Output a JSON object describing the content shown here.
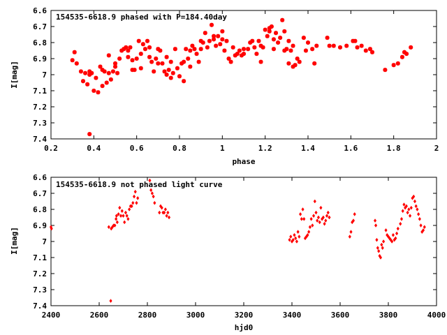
{
  "chart_data": [
    {
      "type": "scatter",
      "title": "154535-6618.9 phased with P=184.40day",
      "xlabel": "phase",
      "ylabel": "I[mag]",
      "xlim": [
        0.2,
        2
      ],
      "ylim": [
        6.6,
        7.4
      ],
      "y_inverted": true,
      "grid": false,
      "x_ticks": [
        "0.2",
        "0.4",
        "0.6",
        "0.8",
        "1",
        "1.2",
        "1.4",
        "1.6",
        "1.8",
        "2"
      ],
      "y_ticks": [
        "6.6",
        "6.7",
        "6.8",
        "6.9",
        "7",
        "7.1",
        "7.2",
        "7.3",
        "7.4"
      ],
      "series": [
        {
          "color": "#ff0000",
          "marker": "star",
          "x": [
            0.3,
            0.31,
            0.32,
            0.34,
            0.35,
            0.36,
            0.37,
            0.38,
            0.38,
            0.39,
            0.4,
            0.41,
            0.42,
            0.43,
            0.44,
            0.45,
            0.46,
            0.47,
            0.48,
            0.49,
            0.5,
            0.51,
            0.52,
            0.53,
            0.54,
            0.55,
            0.56,
            0.57,
            0.58,
            0.59,
            0.6,
            0.61,
            0.62,
            0.63,
            0.64,
            0.65,
            0.66,
            0.67,
            0.68,
            0.69,
            0.7,
            0.71,
            0.72,
            0.73,
            0.74,
            0.75,
            0.76,
            0.77,
            0.78,
            0.79,
            0.8,
            0.81,
            0.82,
            0.83,
            0.84,
            0.85,
            0.86,
            0.87,
            0.88,
            0.89,
            0.9,
            0.91,
            0.92,
            0.93,
            0.94,
            0.95,
            0.96,
            0.97,
            0.98,
            0.99,
            1.0,
            1.01,
            1.02,
            1.03,
            1.04,
            1.05,
            1.07,
            1.08,
            1.09,
            1.1,
            1.12,
            1.13,
            1.14,
            1.15,
            1.16,
            1.17,
            1.18,
            1.19,
            1.2,
            1.21,
            1.22,
            1.23,
            1.24,
            1.25,
            1.26,
            1.27,
            1.28,
            1.29,
            1.3,
            1.31,
            1.32,
            1.33,
            1.34,
            1.35,
            1.36,
            1.38,
            1.39,
            1.4,
            1.42,
            1.43,
            1.44,
            1.49,
            1.5,
            1.52,
            1.55,
            1.58,
            1.61,
            1.62,
            1.63,
            1.65,
            1.67,
            1.69,
            1.7,
            1.76,
            1.8,
            1.82,
            1.84,
            1.85,
            1.86,
            1.88,
            0.38,
            0.44,
            0.47,
            0.58,
            0.66,
            0.74,
            0.85,
            0.96,
            1.06,
            1.18,
            1.24,
            1.31,
            0.5,
            0.56,
            0.62,
            0.7,
            0.76,
            0.82,
            0.9,
            1.0,
            1.1,
            1.22,
            1.29,
            1.33
          ],
          "y": [
            6.91,
            6.86,
            6.93,
            6.98,
            7.04,
            6.99,
            7.06,
            6.98,
            7.37,
            6.99,
            7.1,
            7.02,
            7.11,
            6.95,
            7.07,
            6.98,
            7.05,
            6.99,
            7.03,
            6.98,
            6.93,
            6.99,
            6.9,
            6.85,
            6.84,
            6.83,
            6.85,
            6.83,
            6.91,
            6.97,
            6.9,
            6.79,
            6.87,
            6.81,
            6.84,
            6.79,
            6.89,
            6.92,
            6.98,
            6.9,
            6.84,
            6.85,
            6.93,
            6.98,
            7.0,
            6.97,
            6.92,
            6.99,
            6.84,
            6.96,
            7.01,
            6.93,
            6.92,
            6.84,
            6.9,
            6.85,
            6.82,
            6.84,
            6.87,
            6.92,
            6.79,
            6.8,
            6.74,
            6.83,
            6.79,
            6.69,
            6.78,
            6.82,
            6.76,
            6.81,
            6.73,
            6.85,
            6.79,
            6.9,
            6.92,
            6.83,
            6.87,
            6.85,
            6.88,
            6.87,
            6.84,
            6.8,
            6.79,
            6.83,
            6.87,
            6.79,
            6.82,
            6.83,
            6.72,
            6.76,
            6.73,
            6.7,
            6.78,
            6.74,
            6.8,
            6.77,
            6.66,
            6.73,
            6.84,
            6.79,
            6.85,
            6.82,
            6.94,
            6.9,
            6.92,
            6.77,
            6.85,
            6.8,
            6.84,
            6.93,
            6.82,
            6.77,
            6.82,
            6.82,
            6.83,
            6.82,
            6.79,
            6.79,
            6.83,
            6.82,
            6.85,
            6.84,
            6.86,
            6.97,
            6.94,
            6.93,
            6.89,
            6.86,
            6.87,
            6.83,
            7.0,
            6.97,
            6.88,
            6.97,
            6.83,
            6.89,
            6.95,
            6.76,
            6.88,
            6.92,
            6.84,
            6.93,
            6.95,
            6.89,
            6.96,
            6.93,
            7.02,
            7.04,
            6.84,
            6.78,
            6.84,
            6.71,
            6.85,
            6.95
          ]
        }
      ]
    },
    {
      "type": "scatter",
      "title": "154535-6618.9 not phased light curve",
      "xlabel": "hjd0",
      "ylabel": "I[mag]",
      "xlim": [
        2400,
        4000
      ],
      "ylim": [
        6.6,
        7.4
      ],
      "y_inverted": true,
      "grid": false,
      "x_ticks": [
        "2400",
        "2600",
        "2800",
        "3000",
        "3200",
        "3400",
        "3600",
        "3800",
        "4000"
      ],
      "y_ticks": [
        "6.6",
        "6.7",
        "6.8",
        "6.9",
        "7",
        "7.1",
        "7.2",
        "7.3",
        "7.4"
      ],
      "series": [
        {
          "color": "#ff0000",
          "marker": "diamond",
          "x": [
            2400,
            2402,
            2640,
            2650,
            2655,
            2660,
            2665,
            2670,
            2672,
            2675,
            2680,
            2685,
            2690,
            2695,
            2700,
            2705,
            2710,
            2715,
            2720,
            2725,
            2730,
            2735,
            2740,
            2745,
            2750,
            2755,
            2760,
            2810,
            2815,
            2820,
            2825,
            2830,
            2850,
            2855,
            2860,
            2865,
            2870,
            2875,
            2880,
            2885,
            2890,
            2648,
            3390,
            3395,
            3400,
            3405,
            3410,
            3415,
            3420,
            3425,
            3430,
            3435,
            3440,
            3445,
            3450,
            3455,
            3460,
            3465,
            3470,
            3475,
            3480,
            3485,
            3490,
            3495,
            3500,
            3505,
            3510,
            3515,
            3520,
            3525,
            3530,
            3535,
            3540,
            3545,
            3550,
            3555,
            3640,
            3645,
            3650,
            3655,
            3660,
            3745,
            3748,
            3752,
            3756,
            3760,
            3764,
            3768,
            3772,
            3776,
            3780,
            3790,
            3795,
            3800,
            3805,
            3810,
            3815,
            3820,
            3825,
            3830,
            3835,
            3840,
            3850,
            3855,
            3860,
            3865,
            3870,
            3875,
            3880,
            3885,
            3890,
            3895,
            3900,
            3905,
            3910,
            3915,
            3920,
            3925,
            3930,
            3935,
            3940,
            3945,
            3950
          ],
          "y": [
            6.91,
            6.92,
            6.91,
            6.92,
            6.91,
            6.9,
            6.9,
            6.86,
            6.84,
            6.88,
            6.83,
            6.79,
            6.84,
            6.81,
            6.84,
            6.88,
            6.82,
            6.84,
            6.86,
            6.8,
            6.78,
            6.78,
            6.76,
            6.72,
            6.69,
            6.76,
            6.73,
            6.62,
            6.68,
            6.7,
            6.72,
            6.76,
            6.82,
            6.78,
            6.79,
            6.82,
            6.82,
            6.8,
            6.84,
            6.82,
            6.85,
            7.37,
            6.99,
            6.97,
            7.0,
            6.99,
            6.96,
            6.98,
            7.0,
            6.94,
            6.97,
            6.83,
            6.86,
            6.8,
            6.86,
            6.98,
            6.97,
            6.96,
            6.94,
            6.91,
            6.86,
            6.9,
            6.84,
            6.75,
            6.82,
            6.87,
            6.85,
            6.88,
            6.79,
            6.86,
            6.85,
            6.89,
            6.87,
            6.84,
            6.82,
            6.85,
            6.97,
            6.94,
            6.88,
            6.87,
            6.83,
            6.87,
            6.9,
            6.99,
            7.04,
            7.06,
            7.09,
            7.1,
            7.02,
            7.04,
            7.0,
            6.93,
            6.96,
            6.97,
            6.98,
            6.99,
            7.0,
            6.96,
            6.99,
            6.98,
            6.95,
            6.92,
            6.89,
            6.86,
            6.81,
            6.77,
            6.79,
            6.78,
            6.82,
            6.8,
            6.84,
            6.79,
            6.73,
            6.72,
            6.75,
            6.78,
            6.8,
            6.83,
            6.86,
            6.9,
            6.94,
            6.93,
            6.91
          ]
        }
      ]
    }
  ]
}
